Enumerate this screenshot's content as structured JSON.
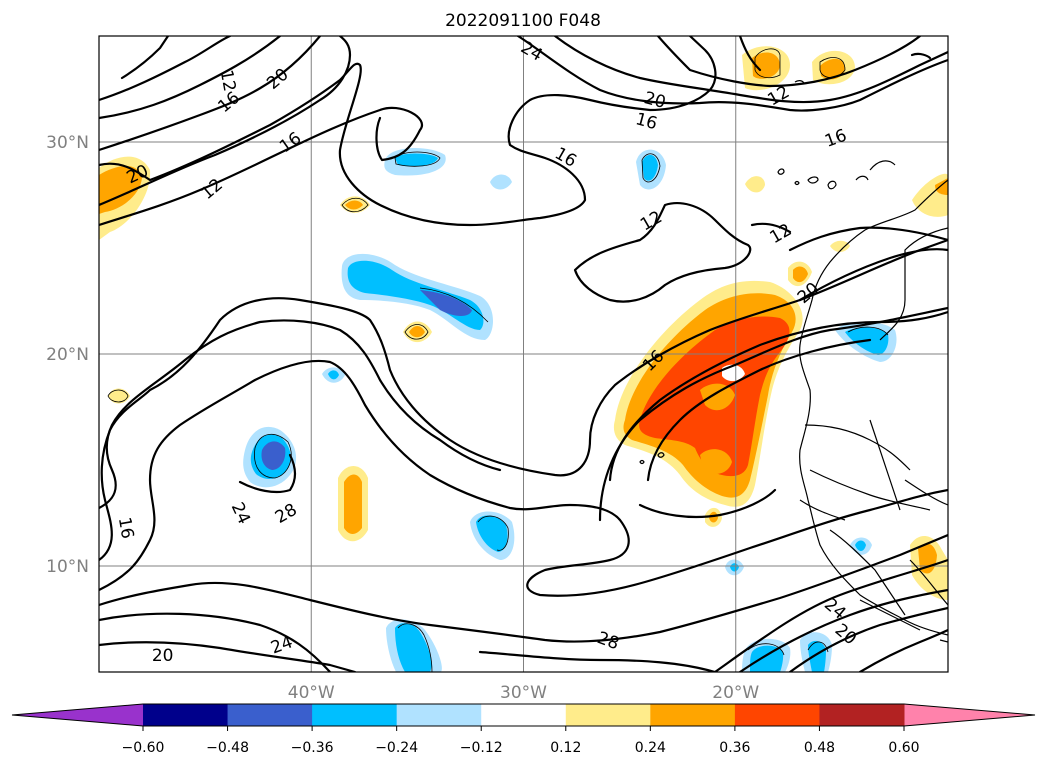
{
  "chart_data": {
    "type": "contour-map",
    "title": "2022091100 F048",
    "projection": "lat-lon",
    "xlim": [
      -50,
      -10
    ],
    "ylim": [
      5,
      35
    ],
    "x_ticks": [
      {
        "value": -40,
        "label": "40°W"
      },
      {
        "value": -30,
        "label": "30°W"
      },
      {
        "value": -20,
        "label": "20°W"
      }
    ],
    "y_ticks": [
      {
        "value": 30,
        "label": "30°N"
      },
      {
        "value": 20,
        "label": "20°N"
      },
      {
        "value": 10,
        "label": "10°N"
      }
    ],
    "grid": true,
    "colorbar": {
      "orientation": "horizontal",
      "extend": "both",
      "levels": [
        -0.72,
        -0.6,
        -0.48,
        -0.36,
        -0.24,
        -0.12,
        0.12,
        0.24,
        0.36,
        0.48,
        0.6,
        0.72
      ],
      "tick_labels": [
        "−0.60",
        "−0.48",
        "−0.36",
        "−0.24",
        "−0.12",
        "0.12",
        "0.24",
        "0.36",
        "0.48",
        "0.60"
      ],
      "colors": [
        "#9932cc",
        "#00008b",
        "#3a5fcd",
        "#00bfff",
        "#b0e2ff",
        "#ffffff",
        "#ffec8b",
        "#ffa500",
        "#ff4500",
        "#b22222",
        "#ff82ab"
      ]
    },
    "contour_labels": [
      {
        "text": "12",
        "lon": -43.9,
        "lat": 32.9,
        "rot": 80
      },
      {
        "text": "16",
        "lon": -43.9,
        "lat": 31.9,
        "rot": -40
      },
      {
        "text": "20",
        "lon": -41.6,
        "lat": 33.0,
        "rot": -40
      },
      {
        "text": "16",
        "lon": -41.0,
        "lat": 30.0,
        "rot": -35
      },
      {
        "text": "12",
        "lon": -44.7,
        "lat": 27.8,
        "rot": -40
      },
      {
        "text": "20",
        "lon": -48.2,
        "lat": 28.5,
        "rot": -25
      },
      {
        "text": "24",
        "lon": -29.6,
        "lat": 34.3,
        "rot": 30
      },
      {
        "text": "20",
        "lon": -23.8,
        "lat": 32.0,
        "rot": 15
      },
      {
        "text": "16",
        "lon": -24.2,
        "lat": 31.0,
        "rot": 15
      },
      {
        "text": "16",
        "lon": -28.0,
        "lat": 29.3,
        "rot": 30
      },
      {
        "text": "12",
        "lon": -24.0,
        "lat": 26.3,
        "rot": -30
      },
      {
        "text": "12",
        "lon": -18.0,
        "lat": 32.2,
        "rot": -30
      },
      {
        "text": "16",
        "lon": -15.3,
        "lat": 30.2,
        "rot": -20
      },
      {
        "text": "12",
        "lon": -17.9,
        "lat": 25.7,
        "rot": -30
      },
      {
        "text": "20",
        "lon": -16.6,
        "lat": 22.9,
        "rot": -40
      },
      {
        "text": "16",
        "lon": -23.9,
        "lat": 19.7,
        "rot": -45
      },
      {
        "text": "24",
        "lon": -43.3,
        "lat": 12.5,
        "rot": 65
      },
      {
        "text": "28",
        "lon": -41.2,
        "lat": 12.5,
        "rot": -30
      },
      {
        "text": "16",
        "lon": -48.7,
        "lat": 11.8,
        "rot": 80
      },
      {
        "text": "20",
        "lon": -47.0,
        "lat": 5.8,
        "rot": 0
      },
      {
        "text": "24",
        "lon": -41.4,
        "lat": 6.3,
        "rot": -20
      },
      {
        "text": "28",
        "lon": -26.0,
        "lat": 6.5,
        "rot": 20
      },
      {
        "text": "24",
        "lon": -15.3,
        "lat": 8.0,
        "rot": 40
      },
      {
        "text": "20",
        "lon": -14.8,
        "lat": 6.8,
        "rot": 40
      }
    ]
  }
}
